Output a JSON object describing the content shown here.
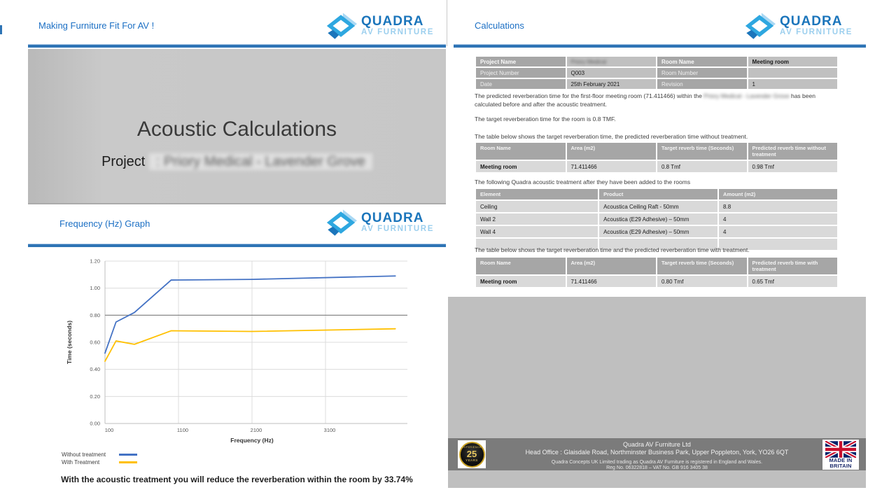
{
  "brand": {
    "logo_primary": "QUADRA",
    "logo_secondary": "AV FURNITURE",
    "accent_blue": "#1B75BB",
    "light_blue": "#9CCFEE",
    "rule_blue": "#2E74B5"
  },
  "left_page": {
    "header_title": "Making Furniture Fit For AV !",
    "hero_title": "Acoustic Calculations",
    "hero_subtitle_prefix": "Project ",
    "hero_subtitle_redacted": ": Priory Medical - Lavender Grove",
    "section_title": "Frequency (Hz) Graph",
    "conclusion": "With the acoustic treatment you will reduce the reverberation within the room by 33.74%"
  },
  "chart_data": {
    "type": "line",
    "title": "Frequency (Hz) Graph",
    "xlabel": "Frequency (Hz)",
    "ylabel": "Time (seconds)",
    "xlim": [
      100,
      4100
    ],
    "ylim": [
      0,
      1.2
    ],
    "x_ticks": [
      100,
      1100,
      2100,
      3100
    ],
    "y_tick_step": 0.2,
    "grid": true,
    "legend_position": "bottom-left",
    "target_line": {
      "value": 0.8,
      "color": "#7F7F7F"
    },
    "series": [
      {
        "name": "Without treatment",
        "color": "#4472C4",
        "x": [
          100,
          250,
          500,
          1000,
          2100,
          4050
        ],
        "y": [
          0.52,
          0.75,
          0.82,
          1.06,
          1.065,
          1.09
        ]
      },
      {
        "name": "With Treatment",
        "color": "#FFC000",
        "x": [
          100,
          250,
          500,
          1000,
          2100,
          4050
        ],
        "y": [
          0.46,
          0.61,
          0.585,
          0.685,
          0.68,
          0.7
        ]
      }
    ]
  },
  "right_page": {
    "header_title": "Calculations",
    "info_table": {
      "rows": [
        [
          "Project Name",
          "Priory Medical",
          "Room Name",
          "Meeting room"
        ],
        [
          "Project Number",
          "Q003",
          "Room Number",
          ""
        ],
        [
          "Date",
          "25th February 2021",
          "Revision",
          "1"
        ]
      ]
    },
    "p1_before": "The predicted reverberation time for the first-floor meeting room (71.411466) within the ",
    "p1_redacted": "Priory Medical - Lavender Grove",
    "p1_after": " has been calculated before and after the acoustic treatment.",
    "p2": "The target reverberation time for the room is 0.8 TMF.",
    "p3": "The table below shows the target reverberation time, the predicted reverberation time without treatment.",
    "table_without": {
      "headers": [
        "Room Name",
        "Area (m2)",
        "Target reverb time (Seconds)",
        "Predicted reverb time without treatment"
      ],
      "rows": [
        [
          "Meeting room",
          "71.411466",
          "0.8 Tmf",
          "0.98 Tmf"
        ]
      ]
    },
    "p4": "The following Quadra acoustic treatment after they have been added to the rooms",
    "treatment_table": {
      "headers": [
        "Element",
        "Product",
        "Amount (m2)"
      ],
      "rows": [
        [
          "Ceiling",
          "Acoustica Ceiling Raft  - 50mm",
          "8.8"
        ],
        [
          "Wall 2",
          "Acoustica (E29 Adhesive) – 50mm",
          "4"
        ],
        [
          "Wall 4",
          "Acoustica (E29 Adhesive) – 50mm",
          "4"
        ],
        [
          "",
          "",
          ""
        ]
      ]
    },
    "p5": "The table below shows the target reverberation time and the predicted reverberation time with treatment.",
    "table_with": {
      "headers": [
        "Room Name",
        "Area (m2)",
        "Target reverb time (Seconds)",
        "Predicted reverb time with treatment"
      ],
      "rows": [
        [
          "Meeting room",
          "71.411466",
          "0.80 Tmf",
          "0.65 Tmf"
        ]
      ]
    },
    "footer": {
      "company": "Quadra AV Furniture Ltd",
      "address": "Head Office : Glaisdale Road, Northminster Business Park, Upper Poppleton, York, YO26 6QT",
      "registration": "Quadra Concepts UK Limited trading as Quadra AV Furniture is registered in England and Wales.",
      "reg_vat": "Reg No. 06322818 – VAT No. GB 916 3405 38",
      "badge_arc": "EXPERIENCE",
      "badge_years": "25",
      "badge_years_label": "YEARS",
      "made_in": "MADE IN",
      "britain": "BRITAIN"
    }
  }
}
